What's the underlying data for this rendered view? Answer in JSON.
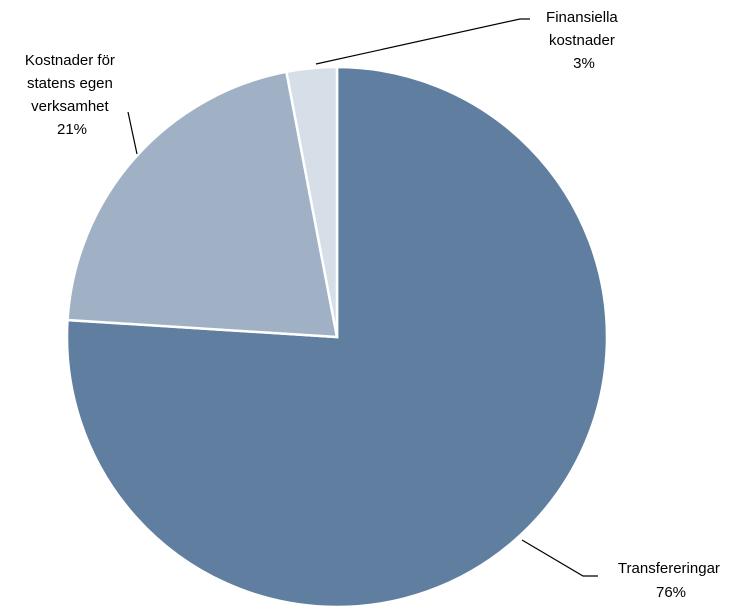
{
  "chart_data": {
    "type": "pie",
    "slices": [
      {
        "label_lines": [
          "Transfereringar"
        ],
        "percent_label": "76%",
        "value": 76,
        "color": "#607fa0"
      },
      {
        "label_lines": [
          "Kostnader för",
          "statens egen",
          "verksamhet"
        ],
        "percent_label": "21%",
        "value": 21,
        "color": "#a0b1c6"
      },
      {
        "label_lines": [
          "Finansiella",
          "kostnader"
        ],
        "percent_label": "3%",
        "value": 3,
        "color": "#d6dee8"
      }
    ]
  }
}
